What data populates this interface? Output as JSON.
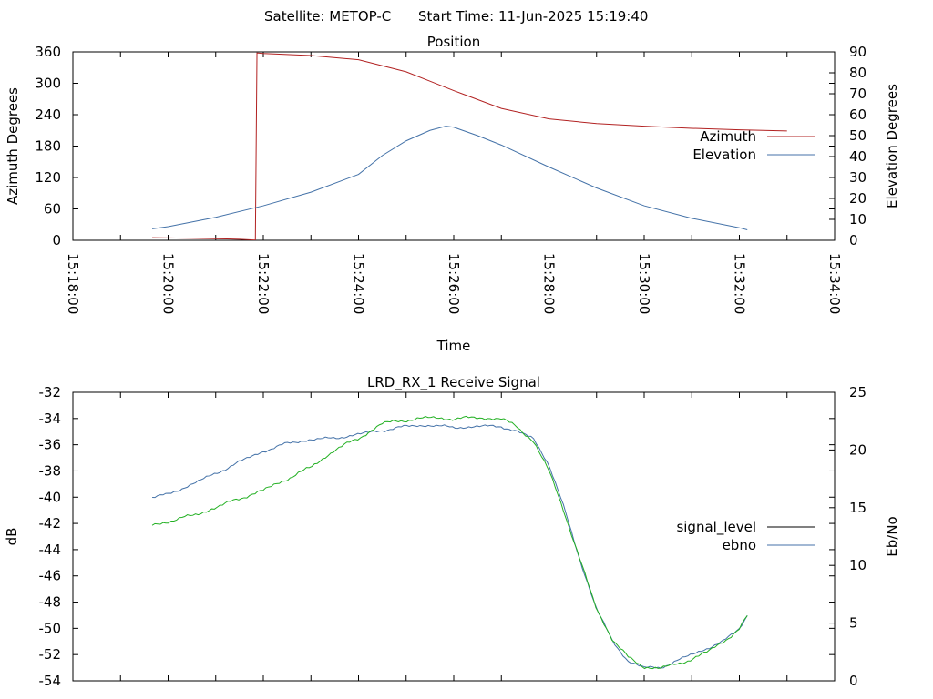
{
  "header": {
    "satellite": "Satellite: METOP-C",
    "start_time": "Start Time: 11-Jun-2025 15:19:40"
  },
  "colors": {
    "azimuth": "#b22222",
    "elevation": "#4472a8",
    "signal_level": "#000000",
    "ebno_line": "#4472a8",
    "ebno_trace": "#22b022",
    "axes": "#000000"
  },
  "chart_data": [
    {
      "type": "line",
      "title": "Position",
      "xlabel": "Time",
      "ylabel": "Azimuth Degrees",
      "y2label": "Elevation Degrees",
      "xlim": [
        "15:18:00",
        "15:34:00"
      ],
      "x_ticks": [
        "15:18:00",
        "15:20:00",
        "15:22:00",
        "15:24:00",
        "15:26:00",
        "15:28:00",
        "15:30:00",
        "15:32:00",
        "15:34:00"
      ],
      "ylim": [
        0,
        360
      ],
      "y_ticks": [
        0,
        60,
        120,
        180,
        240,
        300,
        360
      ],
      "y2lim": [
        0,
        90
      ],
      "y2_ticks": [
        0,
        10,
        20,
        30,
        40,
        50,
        60,
        70,
        80,
        90
      ],
      "legend_position": "right",
      "series": [
        {
          "name": "Azimuth",
          "axis": "left",
          "x": [
            "15:19:40",
            "15:20:30",
            "15:21:30",
            "15:21:50",
            "15:21:52",
            "15:22:00",
            "15:23:00",
            "15:24:00",
            "15:25:00",
            "15:25:30",
            "15:26:00",
            "15:27:00",
            "15:28:00",
            "15:29:00",
            "15:30:00",
            "15:31:00",
            "15:32:00",
            "15:33:00"
          ],
          "values": [
            5,
            4,
            2,
            0.5,
            358,
            357,
            353,
            345,
            322,
            304,
            286,
            252,
            232,
            223,
            218,
            214,
            211,
            209
          ]
        },
        {
          "name": "Elevation",
          "axis": "right",
          "x": [
            "15:19:40",
            "15:20:00",
            "15:21:00",
            "15:22:00",
            "15:23:00",
            "15:24:00",
            "15:24:30",
            "15:25:00",
            "15:25:30",
            "15:25:50",
            "15:26:00",
            "15:26:30",
            "15:27:00",
            "15:28:00",
            "15:29:00",
            "15:30:00",
            "15:31:00",
            "15:32:00",
            "15:32:10"
          ],
          "values": [
            5.5,
            6.5,
            11,
            16.5,
            23,
            31.5,
            40.5,
            47.5,
            52.5,
            54.5,
            54,
            50,
            45.5,
            35,
            25,
            16.5,
            10.5,
            6,
            5
          ]
        }
      ]
    },
    {
      "type": "line",
      "title": "LRD_RX_1 Receive Signal",
      "xlabel": "",
      "ylabel": "dB",
      "y2label": "Eb/No",
      "xlim": [
        "15:18:00",
        "15:34:00"
      ],
      "ylim": [
        -54,
        -32
      ],
      "y_ticks": [
        -54,
        -52,
        -50,
        -48,
        -46,
        -44,
        -42,
        -40,
        -38,
        -36,
        -34,
        -32
      ],
      "y2lim": [
        0,
        25
      ],
      "y2_ticks": [
        0,
        5,
        10,
        15,
        20,
        25
      ],
      "legend_position": "right",
      "series": [
        {
          "name": "signal_level",
          "axis": "left",
          "x": [
            "15:19:40",
            "15:20:00",
            "15:20:30",
            "15:21:00",
            "15:21:30",
            "15:22:00",
            "15:22:30",
            "15:23:00",
            "15:23:30",
            "15:24:00",
            "15:24:30",
            "15:25:00",
            "15:25:30",
            "15:26:00",
            "15:26:30",
            "15:27:00",
            "15:27:20",
            "15:27:40",
            "15:28:00",
            "15:28:20",
            "15:28:40",
            "15:29:00",
            "15:29:20",
            "15:29:40",
            "15:30:00",
            "15:30:20",
            "15:30:40",
            "15:31:00",
            "15:31:20",
            "15:31:40",
            "15:32:00",
            "15:32:10"
          ],
          "values": [
            -40,
            -39.8,
            -39,
            -38.2,
            -37.3,
            -36.5,
            -35.9,
            -35.6,
            -35.5,
            -35.2,
            -34.9,
            -34.6,
            -34.5,
            -34.7,
            -34.6,
            -34.6,
            -35,
            -35.5,
            -37.5,
            -41,
            -45,
            -48.5,
            -51,
            -52.5,
            -53,
            -53,
            -52.5,
            -52,
            -51.5,
            -51,
            -50,
            -49
          ]
        },
        {
          "name": "ebno",
          "axis": "right",
          "x": [
            "15:19:40",
            "15:20:00",
            "15:20:30",
            "15:21:00",
            "15:21:30",
            "15:22:00",
            "15:22:30",
            "15:23:00",
            "15:23:30",
            "15:24:00",
            "15:24:30",
            "15:25:00",
            "15:25:30",
            "15:26:00",
            "15:26:30",
            "15:27:00",
            "15:27:20",
            "15:27:40",
            "15:28:00",
            "15:28:20",
            "15:28:40",
            "15:29:00",
            "15:29:20",
            "15:29:40",
            "15:30:00",
            "15:30:20",
            "15:30:40",
            "15:31:00",
            "15:31:20",
            "15:31:40",
            "15:32:00",
            "15:32:10"
          ],
          "values": [
            13.5,
            13.8,
            14.3,
            15,
            15.8,
            16.5,
            17.5,
            18.5,
            20,
            21,
            22.3,
            22.6,
            22.8,
            22.7,
            22.8,
            22.7,
            22,
            20.8,
            18.2,
            14.5,
            10.3,
            6.2,
            3.6,
            2,
            1.2,
            1.1,
            1.4,
            1.9,
            2.5,
            3.4,
            4.5,
            5.6
          ]
        }
      ]
    }
  ]
}
